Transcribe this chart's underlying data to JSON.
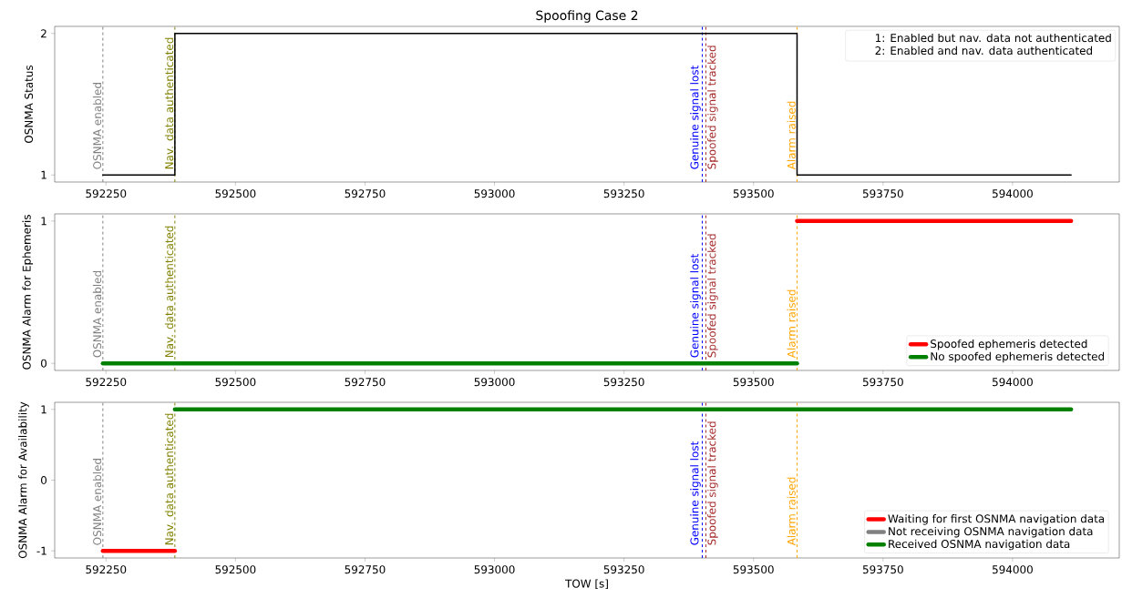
{
  "chart_data": [
    {
      "type": "step",
      "title": "Spoofing Case 2",
      "ylabel": "OSNMA Status",
      "x": [
        592244,
        592383,
        593584,
        594113
      ],
      "series": [
        {
          "color": "#000000",
          "values": [
            1,
            2,
            1,
            1
          ]
        }
      ],
      "xlim": [
        592151,
        594206
      ],
      "ylim": [
        0.95,
        2.05
      ],
      "xticks": [
        592250,
        592500,
        592750,
        593000,
        593250,
        593500,
        593750,
        594000
      ],
      "yticks": [
        1,
        2
      ],
      "ref_lines": [
        {
          "axis": "x",
          "value": 592244,
          "label": "OSNMA enabled",
          "color": "#808080",
          "line_style": "dashed"
        },
        {
          "axis": "x",
          "value": 592383,
          "label": "Nav. data authenticated",
          "color": "#808000",
          "line_style": "dashed"
        },
        {
          "axis": "x",
          "value": 593401,
          "label": "Genuine signal lost",
          "color": "#0000ff",
          "line_style": "dashed"
        },
        {
          "axis": "x",
          "value": 593408,
          "label": "Spoofed signal tracked",
          "color": "#a52a2a",
          "line_style": "dashed"
        },
        {
          "axis": "x",
          "value": 593584,
          "label": "Alarm raised",
          "color": "#ffa500",
          "line_style": "dashed"
        }
      ],
      "annotations": [
        "1: Enabled but nav. data not authenticated",
        "2: Enabled and nav. data authenticated"
      ],
      "grid": false,
      "marker": "none"
    },
    {
      "type": "line",
      "ylabel": "OSNMA Alarm for Ephemeris",
      "series": [
        {
          "name": "Spoofed ephemeris detected",
          "color": "#ff0000",
          "x": [
            593584,
            594113
          ],
          "values": [
            1,
            1
          ]
        },
        {
          "name": "No spoofed ephemeris detected",
          "color": "#008000",
          "x": [
            592244,
            593584
          ],
          "values": [
            0,
            0
          ]
        }
      ],
      "xlim": [
        592151,
        594206
      ],
      "ylim": [
        -0.05,
        1.05
      ],
      "xticks": [
        592250,
        592500,
        592750,
        593000,
        593250,
        593500,
        593750,
        594000
      ],
      "yticks": [
        0,
        1
      ],
      "ref_lines": [
        {
          "axis": "x",
          "value": 592244,
          "label": "OSNMA enabled",
          "color": "#808080",
          "line_style": "dashed"
        },
        {
          "axis": "x",
          "value": 592383,
          "label": "Nav. data authenticated",
          "color": "#808000",
          "line_style": "dashed"
        },
        {
          "axis": "x",
          "value": 593401,
          "label": "Genuine signal lost",
          "color": "#0000ff",
          "line_style": "dashed"
        },
        {
          "axis": "x",
          "value": 593408,
          "label": "Spoofed signal tracked",
          "color": "#a52a2a",
          "line_style": "dashed"
        },
        {
          "axis": "x",
          "value": 593584,
          "label": "Alarm raised",
          "color": "#ffa500",
          "line_style": "dashed"
        }
      ],
      "legend": "bottom right",
      "grid": false,
      "marker": "none"
    },
    {
      "type": "line",
      "ylabel": "OSNMA Alarm for Availability",
      "xlabel": "TOW [s]",
      "series": [
        {
          "name": "Waiting for first OSNMA navigation data",
          "color": "#ff0000",
          "x": [
            592244,
            592383
          ],
          "values": [
            -1,
            -1
          ]
        },
        {
          "name": "Not receiving OSNMA navigation data",
          "color": "#808080"
        },
        {
          "name": "Received OSNMA navigation data",
          "color": "#008000",
          "x": [
            592383,
            594113
          ],
          "values": [
            1,
            1
          ]
        }
      ],
      "xlim": [
        592151,
        594206
      ],
      "ylim": [
        -1.1,
        1.1
      ],
      "xticks": [
        592250,
        592500,
        592750,
        593000,
        593250,
        593500,
        593750,
        594000
      ],
      "yticks": [
        -1,
        0,
        1
      ],
      "ref_lines": [
        {
          "axis": "x",
          "value": 592244,
          "label": "OSNMA enabled",
          "color": "#808080",
          "line_style": "dashed"
        },
        {
          "axis": "x",
          "value": 592383,
          "label": "Nav. data authenticated",
          "color": "#808000",
          "line_style": "dashed"
        },
        {
          "axis": "x",
          "value": 593401,
          "label": "Genuine signal lost",
          "color": "#0000ff",
          "line_style": "dashed"
        },
        {
          "axis": "x",
          "value": 593408,
          "label": "Spoofed signal tracked",
          "color": "#a52a2a",
          "line_style": "dashed"
        },
        {
          "axis": "x",
          "value": 593584,
          "label": "Alarm raised",
          "color": "#ffa500",
          "line_style": "dashed"
        }
      ],
      "legend": "bottom right",
      "grid": false,
      "marker": "none"
    }
  ]
}
